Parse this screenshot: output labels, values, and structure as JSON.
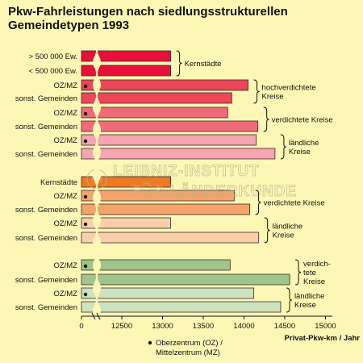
{
  "title_lines": [
    "Pkw-Fahrleistungen nach siedlungsstrukturellen",
    "Gemeindetypen 1993"
  ],
  "watermark": {
    "line1": "LEIBNIZ-INSTITUT",
    "line2": "FÜR LÄNDERKUNDE"
  },
  "legend": {
    "marker_label_line1": "Oberzentrum (OZ) /",
    "marker_label_line2": "Mittelzentrum (MZ)"
  },
  "colors": {
    "kernstaedte_west": "#e8103a",
    "hochverdichtet_west": "#ec4657",
    "verdichtet_west": "#f06b7a",
    "laendlich_west": "#f7a5b2",
    "kernstaedte_ost": "#f07820",
    "verdichtet_ost": "#f4a46a",
    "laendlich_ost": "#f9cfaa",
    "verdichtet_east2": "#9ec58a",
    "laendlich_east2": "#cde3bf"
  },
  "chart_data": {
    "type": "bar",
    "orientation": "horizontal",
    "title": "Pkw-Fahrleistungen nach siedlungsstrukturellen Gemeindetypen 1993",
    "xlabel": "Privat-Pkw-km / Jahr",
    "axis_break": "between 0 and 12500",
    "xticks": [
      "0",
      "12500",
      "13000",
      "13500",
      "14000",
      "14500",
      "15000"
    ],
    "xlim": [
      12350,
      15100
    ],
    "bars": [
      {
        "label": "> 500 000 Ew.",
        "value": 13100,
        "oz_marker": false,
        "color_key": "kernstaedte_west"
      },
      {
        "label": "< 500 000 Ew.",
        "value": 13100,
        "oz_marker": false,
        "color_key": "kernstaedte_west"
      },
      {
        "label": "OZ/MZ",
        "value": 14050,
        "oz_marker": true,
        "color_key": "hochverdichtet_west"
      },
      {
        "label": "sonst. Gemeinden",
        "value": 13850,
        "oz_marker": false,
        "color_key": "hochverdichtet_west"
      },
      {
        "label": "OZ/MZ",
        "value": 13800,
        "oz_marker": true,
        "color_key": "verdichtet_west"
      },
      {
        "label": "sonst. Gemeinden",
        "value": 14170,
        "oz_marker": false,
        "color_key": "verdichtet_west"
      },
      {
        "label": "OZ/MZ",
        "value": 14150,
        "oz_marker": true,
        "color_key": "laendlich_west"
      },
      {
        "label": "sonst. Gemeinden",
        "value": 14380,
        "oz_marker": false,
        "color_key": "laendlich_west"
      },
      {
        "label": "Kernstädte",
        "value": 13100,
        "oz_marker": false,
        "color_key": "kernstaedte_ost"
      },
      {
        "label": "OZ/MZ",
        "value": 13880,
        "oz_marker": true,
        "color_key": "verdichtet_ost"
      },
      {
        "label": "sonst. Gemeinden",
        "value": 14070,
        "oz_marker": false,
        "color_key": "verdichtet_ost"
      },
      {
        "label": "OZ/MZ",
        "value": 13100,
        "oz_marker": true,
        "color_key": "laendlich_ost"
      },
      {
        "label": "sonst. Gemeinden",
        "value": 14180,
        "oz_marker": false,
        "color_key": "laendlich_ost"
      },
      {
        "label": "OZ/MZ",
        "value": 13830,
        "oz_marker": true,
        "color_key": "verdichtet_east2"
      },
      {
        "label": "sonst. Gemeinden",
        "value": 14560,
        "oz_marker": false,
        "color_key": "verdichtet_east2"
      },
      {
        "label": "OZ/MZ",
        "value": 14120,
        "oz_marker": true,
        "color_key": "laendlich_east2"
      },
      {
        "label": "sonst. Gemeinden",
        "value": 14450,
        "oz_marker": false,
        "color_key": "laendlich_east2"
      }
    ],
    "brackets": [
      {
        "lines": [
          "Kernstädte"
        ],
        "from": 0,
        "to": 1
      },
      {
        "lines": [
          "hochverdichtete",
          "Kreise"
        ],
        "from": 2,
        "to": 3
      },
      {
        "lines": [
          "verdichtete Kreise"
        ],
        "from": 4,
        "to": 5
      },
      {
        "lines": [
          "ländliche",
          "Kreise"
        ],
        "from": 6,
        "to": 7
      },
      {
        "lines": [
          "verdichtete Kreise"
        ],
        "from": 9,
        "to": 10
      },
      {
        "lines": [
          "ländliche",
          "Kreise"
        ],
        "from": 11,
        "to": 12
      },
      {
        "lines": [
          "verdich-",
          "tete",
          "Kreise"
        ],
        "from": 13,
        "to": 14
      },
      {
        "lines": [
          "ländliche",
          "Kreise"
        ],
        "from": 15,
        "to": 16
      }
    ]
  }
}
